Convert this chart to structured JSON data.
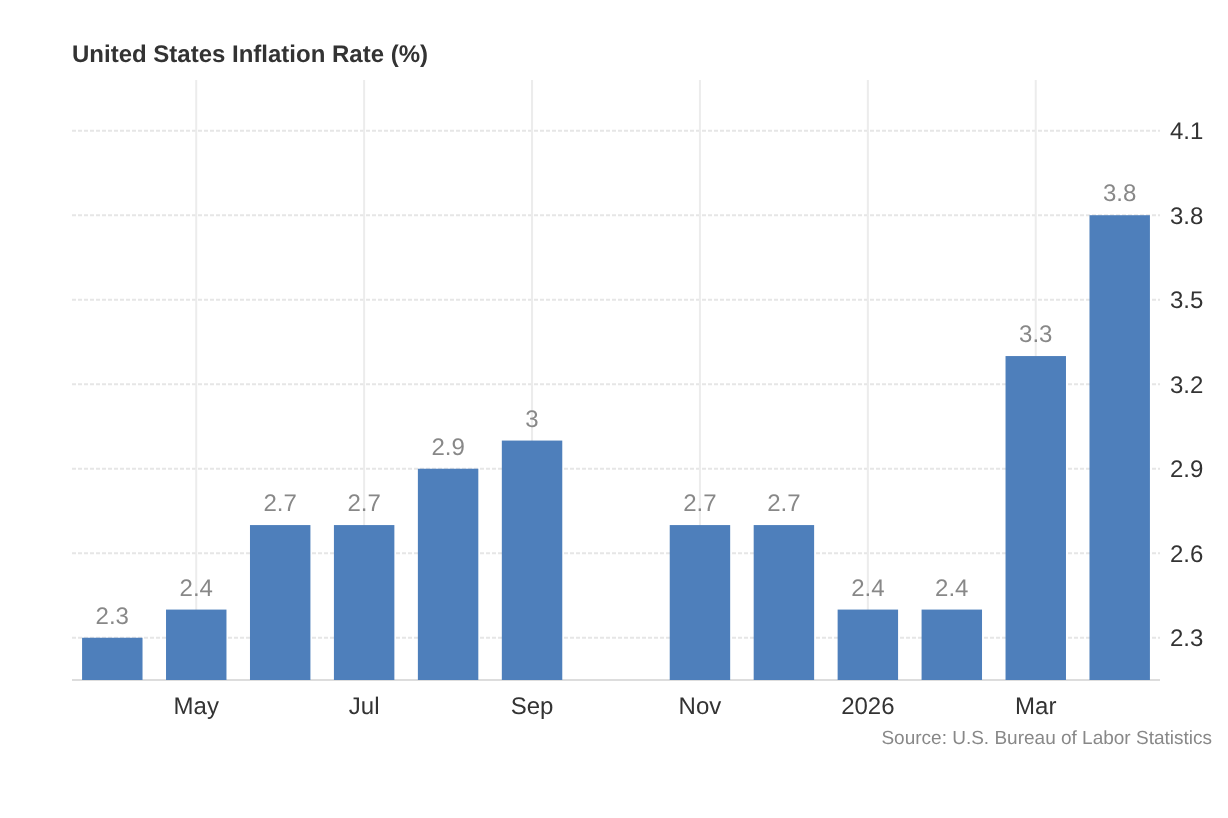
{
  "chart_data": {
    "type": "bar",
    "title": "United States Inflation Rate (%)",
    "categories": [
      null,
      "May",
      null,
      "Jul",
      null,
      "Sep",
      null,
      "Nov",
      null,
      "2026",
      null,
      "Mar",
      null
    ],
    "values": [
      2.3,
      2.4,
      2.7,
      2.7,
      2.9,
      3,
      null,
      2.7,
      2.7,
      2.4,
      2.4,
      3.3,
      3.8
    ],
    "color": "#4e7fbb",
    "data_labels": true,
    "ylim": [
      2.15,
      4.28
    ],
    "yticks": [
      2.3,
      2.6,
      2.9,
      3.2,
      3.5,
      3.8,
      4.1
    ],
    "grid": true,
    "annotations": [
      "Source: U.S. Bureau of Labor Statistics"
    ]
  }
}
